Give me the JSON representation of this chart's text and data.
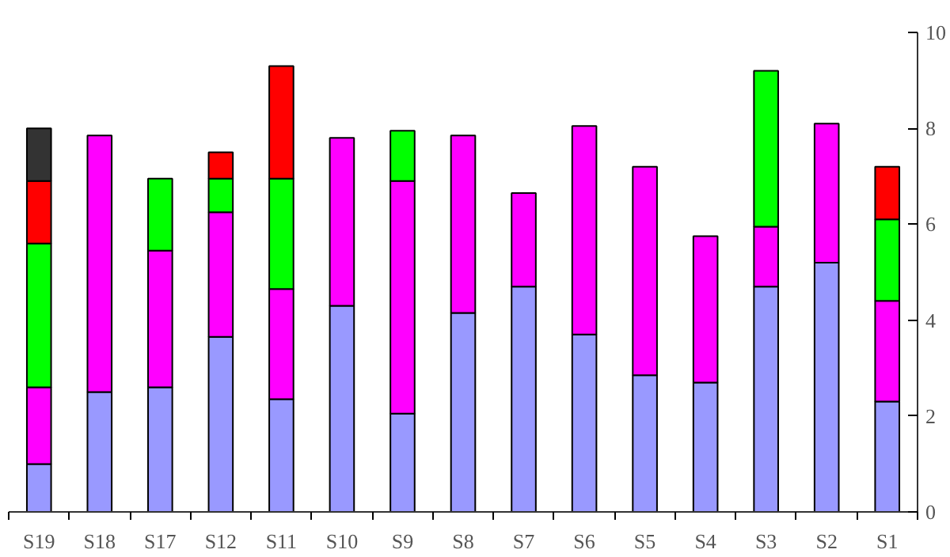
{
  "chart_data": {
    "type": "bar",
    "stacked": true,
    "categories": [
      "S19",
      "S18",
      "S17",
      "S12",
      "S11",
      "S10",
      "S9",
      "S8",
      "S7",
      "S6",
      "S5",
      "S4",
      "S3",
      "S2",
      "S1"
    ],
    "series": [
      {
        "color": "#9999ff",
        "values": [
          1.0,
          2.5,
          2.6,
          3.65,
          2.35,
          4.3,
          2.05,
          4.15,
          4.7,
          3.7,
          2.85,
          2.7,
          4.7,
          5.2,
          2.3
        ]
      },
      {
        "color": "#ff00ff",
        "values": [
          1.6,
          5.35,
          2.85,
          2.6,
          2.3,
          3.5,
          4.85,
          3.7,
          1.95,
          4.35,
          4.35,
          3.05,
          1.25,
          2.9,
          2.1
        ]
      },
      {
        "color": "#00ff00",
        "values": [
          3.0,
          null,
          1.5,
          0.7,
          2.3,
          null,
          1.05,
          null,
          null,
          null,
          null,
          null,
          3.25,
          null,
          1.7
        ]
      },
      {
        "color": "#ff0000",
        "values": [
          1.3,
          null,
          null,
          0.55,
          2.35,
          null,
          null,
          null,
          null,
          null,
          null,
          null,
          null,
          null,
          1.1
        ]
      },
      {
        "color": "#333333",
        "values": [
          1.1,
          null,
          null,
          null,
          null,
          null,
          null,
          null,
          null,
          null,
          null,
          null,
          null,
          null,
          null
        ]
      }
    ],
    "ylim": [
      0,
      10
    ],
    "yticks": [
      0,
      2,
      4,
      6,
      8,
      10
    ],
    "grid": false
  }
}
